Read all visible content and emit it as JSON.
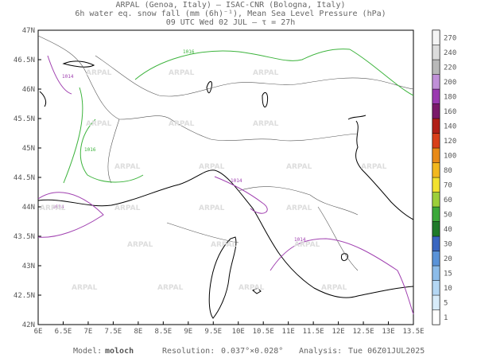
{
  "header": {
    "lines": [
      "ARPAL (Genoa, Italy)  —  ISAC-CNR (Bologna, Italy)",
      "6h water eq. snow fall (mm (6h)⁻¹), Mean Sea Level Pressure (hPa)",
      "09 UTC Wed 02 JUL  —  τ = 27h"
    ]
  },
  "map": {
    "lat_labels": [
      "47N",
      "46.5N",
      "46N",
      "45.5N",
      "45N",
      "44.5N",
      "44N",
      "43.5N",
      "43N",
      "42.5N",
      "42N"
    ],
    "lon_labels": [
      "6E",
      "6.5E",
      "7E",
      "7.5E",
      "8E",
      "8.5E",
      "9E",
      "9.5E",
      "10E",
      "10.5E",
      "11E",
      "11.5E",
      "12E",
      "12.5E",
      "13E",
      "13.5E"
    ],
    "contour_labels": [
      "1016",
      "1014",
      "1016",
      "1014",
      "1014",
      "1014"
    ],
    "watermark": "ARPAL"
  },
  "colorbar": {
    "labels": [
      1,
      5,
      10,
      15,
      20,
      30,
      40,
      50,
      60,
      70,
      80,
      100,
      120,
      140,
      160,
      180,
      200,
      220,
      240,
      270
    ],
    "colors": [
      "#ffffff",
      "#d8ecfa",
      "#b4d7f4",
      "#8cbce9",
      "#5a93d8",
      "#3a66c0",
      "#1f7a2a",
      "#3ca83a",
      "#9ccf3a",
      "#f2e230",
      "#f2b81e",
      "#e88a18",
      "#d8401a",
      "#b02018",
      "#7a1a6a",
      "#9a3ab0",
      "#c090d8",
      "#b8b8b8",
      "#dcdcdc",
      "#f4f4f4"
    ]
  },
  "footer": {
    "model_label": "Model:",
    "model": "moloch",
    "resolution_label": "Resolution:",
    "resolution": "0.037°×0.028°",
    "analysis_label": "Analysis:",
    "analysis": "Tue 06Z01JUL2025"
  }
}
